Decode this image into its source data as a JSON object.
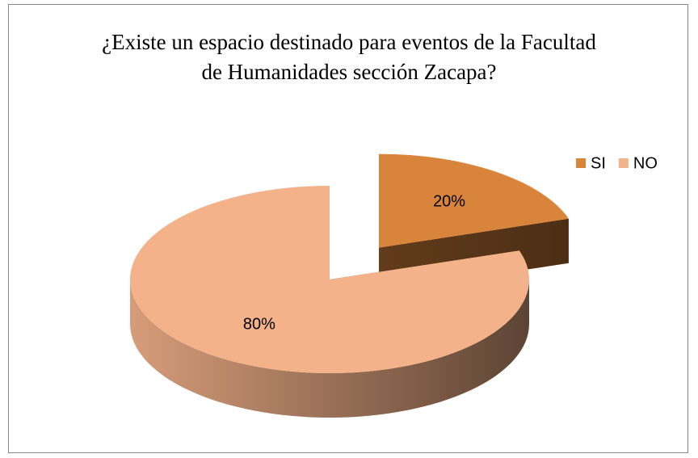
{
  "chart_data": {
    "type": "pie",
    "title": "¿Existe un espacio destinado para eventos de la Facultad de Humanidades sección Zacapa?",
    "categories": [
      "SI",
      "NO"
    ],
    "values": [
      20,
      80
    ],
    "value_labels": [
      "20%",
      "80%"
    ],
    "colors": [
      "#d9843b",
      "#f4b28a"
    ],
    "exploded": [
      true,
      false
    ],
    "legend": "top-right"
  }
}
